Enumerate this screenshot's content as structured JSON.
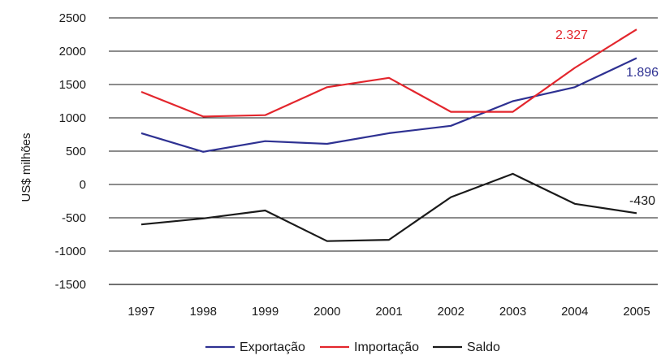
{
  "chart_data": {
    "type": "line",
    "title": "",
    "xlabel": "",
    "ylabel": "US$  milhões",
    "x": [
      "1997",
      "1998",
      "1999",
      "2000",
      "2001",
      "2002",
      "2003",
      "2004",
      "2005"
    ],
    "ylim": [
      -1500,
      2500
    ],
    "yticks": [
      "2500",
      "2000",
      "1500",
      "1000",
      "500",
      "0",
      "-500",
      "-1000",
      "-1500"
    ],
    "ytick_values": [
      2500,
      2000,
      1500,
      1000,
      500,
      0,
      -500,
      -1000,
      -1500
    ],
    "grid": "horizontal",
    "legend_position": "bottom",
    "series": [
      {
        "name": "Exportação",
        "color": "#2e3192",
        "values": [
          770,
          490,
          650,
          610,
          770,
          880,
          1250,
          1460,
          1896
        ],
        "end_label": "1.896"
      },
      {
        "name": "Importação",
        "color": "#e3262d",
        "values": [
          1390,
          1020,
          1040,
          1460,
          1600,
          1090,
          1090,
          1750,
          2327
        ],
        "end_label": "2.327"
      },
      {
        "name": "Saldo",
        "color": "#1a1a1a",
        "values": [
          -600,
          -510,
          -390,
          -850,
          -830,
          -190,
          160,
          -290,
          -430
        ],
        "end_label": "-430"
      }
    ]
  }
}
